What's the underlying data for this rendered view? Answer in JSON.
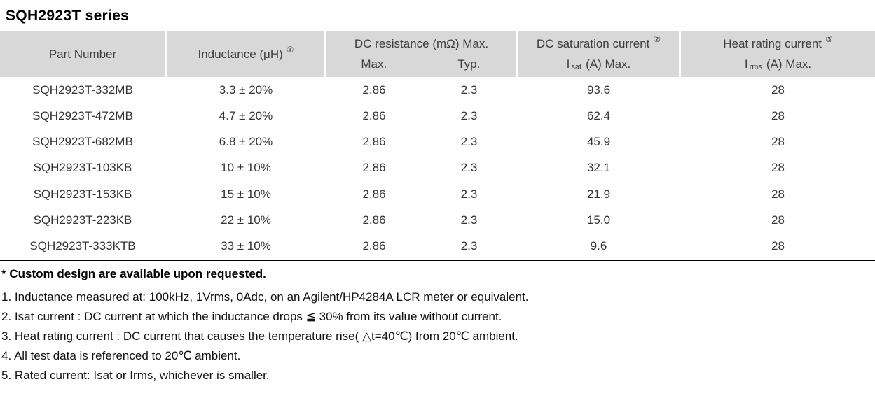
{
  "title": "SQH2923T series",
  "colors": {
    "header_bg": "#d8d8d8",
    "table_rule": "#000000",
    "text": "#333333"
  },
  "table": {
    "header": {
      "part_number": "Part Number",
      "inductance": {
        "label": "Inductance (μH)",
        "sup": "①"
      },
      "dc_resistance": {
        "label": "DC resistance (mΩ) Max.",
        "max": "Max.",
        "typ": "Typ."
      },
      "dc_saturation": {
        "label": "DC saturation current",
        "sup": "②",
        "unit_i": "I",
        "unit_sub": "sat",
        "unit_rest": "(A)  Max."
      },
      "heat_rating": {
        "label": "Heat rating current",
        "sup": "③",
        "unit_i": "I",
        "unit_sub": "rms",
        "unit_rest": "(A)  Max."
      }
    },
    "rows": [
      {
        "part": "SQH2923T-332MB",
        "inductance": "3.3 ± 20%",
        "dcr_max": "2.86",
        "dcr_typ": "2.3",
        "isat": "93.6",
        "irms": "28"
      },
      {
        "part": "SQH2923T-472MB",
        "inductance": "4.7 ± 20%",
        "dcr_max": "2.86",
        "dcr_typ": "2.3",
        "isat": "62.4",
        "irms": "28"
      },
      {
        "part": "SQH2923T-682MB",
        "inductance": "6.8 ± 20%",
        "dcr_max": "2.86",
        "dcr_typ": "2.3",
        "isat": "45.9",
        "irms": "28"
      },
      {
        "part": "SQH2923T-103KB",
        "inductance": "10 ± 10%",
        "dcr_max": "2.86",
        "dcr_typ": "2.3",
        "isat": "32.1",
        "irms": "28"
      },
      {
        "part": "SQH2923T-153KB",
        "inductance": "15 ± 10%",
        "dcr_max": "2.86",
        "dcr_typ": "2.3",
        "isat": "21.9",
        "irms": "28"
      },
      {
        "part": "SQH2923T-223KB",
        "inductance": "22 ± 10%",
        "dcr_max": "2.86",
        "dcr_typ": "2.3",
        "isat": "15.0",
        "irms": "28"
      },
      {
        "part": "SQH2923T-333KTB",
        "inductance": "33 ± 10%",
        "dcr_max": "2.86",
        "dcr_typ": "2.3",
        "isat": "9.6",
        "irms": "28"
      }
    ]
  },
  "notes": {
    "custom": "* Custom design are available upon requested.",
    "items": [
      "1. Inductance measured at: 100kHz, 1Vrms, 0Adc, on an Agilent/HP4284A LCR meter or equivalent.",
      "2. Isat current : DC current at which the inductance drops ≦ 30% from its value without current.",
      "3. Heat rating current : DC current that causes the temperature rise( △t=40℃) from 20℃ ambient.",
      "4. All test data is referenced to 20℃ ambient.",
      "5. Rated current: Isat or Irms, whichever is smaller."
    ]
  }
}
